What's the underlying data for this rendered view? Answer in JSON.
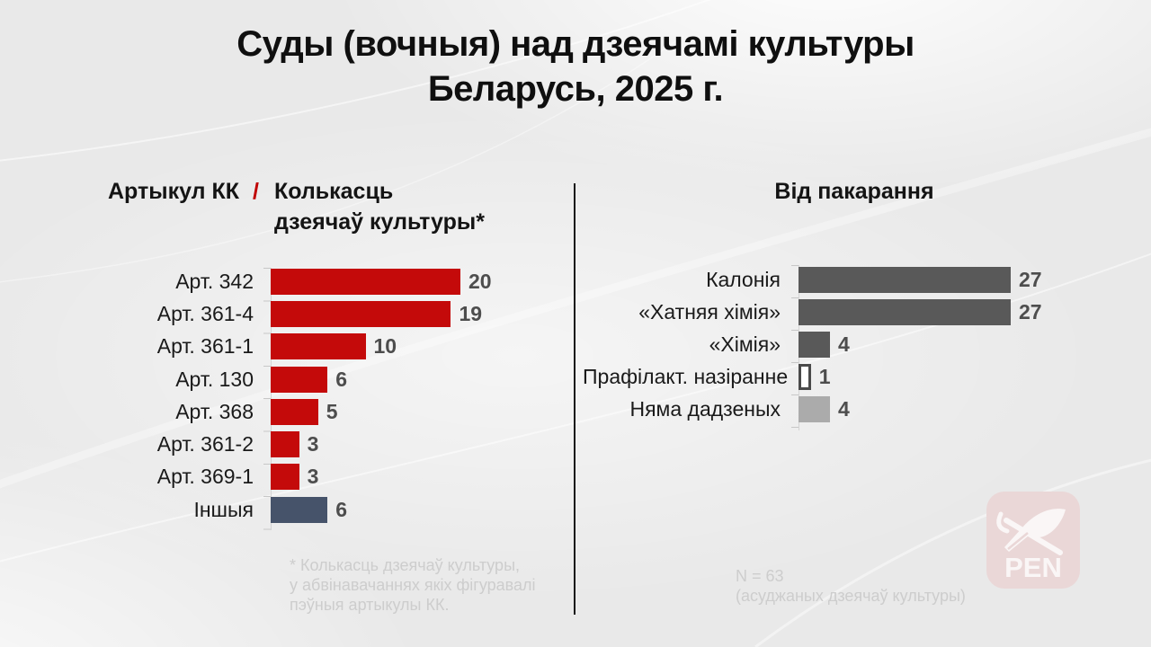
{
  "title": {
    "line1": "Суды (вочныя) над дзеячамі культуры",
    "line2": "Беларусь, 2025 г."
  },
  "left_header": {
    "part1": "Артыкул КК",
    "separator": "/",
    "part2_line1": "Колькасць",
    "part2_line2": "дзеячаў культуры*"
  },
  "right_header": {
    "title": "Від пакарання"
  },
  "chart_data": [
    {
      "type": "bar",
      "orientation": "horizontal",
      "title": "Артыкул КК / Колькасць дзеячаў культуры*",
      "categories": [
        "Арт. 342",
        "Арт. 361-4",
        "Арт. 361-1",
        "Арт. 130",
        "Арт. 368",
        "Арт. 361-2",
        "Арт. 369-1",
        "Іншыя"
      ],
      "values": [
        20,
        19,
        10,
        6,
        5,
        3,
        3,
        6
      ],
      "bar_colors": [
        "#c40a0a",
        "#c40a0a",
        "#c40a0a",
        "#c40a0a",
        "#c40a0a",
        "#c40a0a",
        "#c40a0a",
        "#46536a"
      ],
      "xlim": [
        0,
        20
      ],
      "value_labels": "end-of-bar",
      "grid": false,
      "legend": "none"
    },
    {
      "type": "bar",
      "orientation": "horizontal",
      "title": "Від пакарання",
      "categories": [
        "Калонія",
        "«Хатняя хімія»",
        "«Хімія»",
        "Прафілакт. назіранне",
        "Няма дадзеных"
      ],
      "values": [
        27,
        27,
        4,
        1,
        4
      ],
      "bar_colors": [
        "#595959",
        "#595959",
        "#595959",
        "#ffffff",
        "#ababab"
      ],
      "xlim": [
        0,
        27
      ],
      "value_labels": "end-of-bar",
      "grid": false,
      "legend": "none"
    }
  ],
  "footnotes": {
    "left": [
      "* Колькасць дзеячаў культуры,",
      "у абвінавачаннях якіх фігуравалі",
      "пэўныя артыкулы КК."
    ],
    "right": [
      "N = 63",
      "(асуджаных дзеячаў культуры)"
    ]
  },
  "logo": {
    "text": "PEN"
  },
  "colors": {
    "bar_red": "#c40a0a",
    "bar_slate": "#46536a",
    "bar_dark_gray": "#595959",
    "bar_light_gray": "#ababab",
    "bar_white_outline": "#4a4a4a",
    "accent_red_slash": "#c00000",
    "value_label": "#4d4d4d",
    "divider": "#161616",
    "footnote": "#cdcdcd",
    "logo_background": "#ead7d7"
  }
}
